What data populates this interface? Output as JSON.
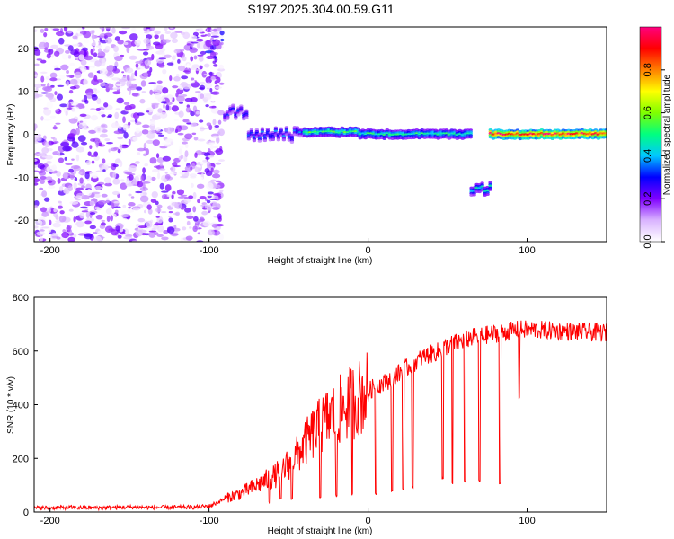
{
  "title": "S197.2025.304.00.59.G11",
  "chart_data": [
    {
      "type": "heatmap",
      "xlabel": "Height of straight line (km)",
      "ylabel": "Frequency (Hz)",
      "xlim": [
        -210,
        150
      ],
      "ylim": [
        -25,
        25
      ],
      "xticks": [
        -200,
        -100,
        0,
        100
      ],
      "xtick_labels": [
        "-200",
        "-100",
        "0",
        "100"
      ],
      "yticks": [
        -20,
        -10,
        0,
        10,
        20
      ],
      "ytick_labels": [
        "-20",
        "-10",
        "0",
        "10",
        "20"
      ],
      "colorbar": {
        "label": "Normalized spectral amplitude",
        "range": [
          0,
          1
        ],
        "ticks": [
          0.0,
          0.2,
          0.4,
          0.6,
          0.8
        ],
        "tick_labels": [
          "0.0",
          "0.2",
          "0.4",
          "0.6",
          "0.8"
        ],
        "colors": [
          "#ffffff",
          "#d9b3ff",
          "#8000ff",
          "#0000ff",
          "#00c8ff",
          "#00ff80",
          "#80ff00",
          "#ffff00",
          "#ff8000",
          "#ff0000",
          "#ff0080"
        ]
      },
      "features": [
        {
          "x_range": [
            -210,
            -92
          ],
          "freq_range": [
            -25,
            25
          ],
          "pattern": "noise",
          "amp": 0.15
        },
        {
          "x_range": [
            -100,
            -90
          ],
          "freq_range": [
            16,
            25
          ],
          "pattern": "patch",
          "amp": 0.2
        },
        {
          "x_range": [
            -90,
            -75
          ],
          "freq": 5,
          "amp": 0.3
        },
        {
          "x_range": [
            -75,
            -40
          ],
          "freq": 0,
          "amp": 0.35
        },
        {
          "x_range": [
            -40,
            -5
          ],
          "freq": 0.5,
          "amp": 0.55
        },
        {
          "x_range": [
            -5,
            65
          ],
          "freq": 0,
          "amp": 0.5
        },
        {
          "x_range": [
            65,
            77
          ],
          "freq": -13,
          "amp": 0.45
        },
        {
          "x_range": [
            77,
            150
          ],
          "freq": 0,
          "amp": 0.95
        }
      ],
      "grid": false
    },
    {
      "type": "line",
      "xlabel": "Height of straight line (km)",
      "ylabel": "SNR (10 * v/v)",
      "xlim": [
        -210,
        150
      ],
      "ylim": [
        0,
        800
      ],
      "xticks": [
        -200,
        -100,
        0,
        100
      ],
      "xtick_labels": [
        "-200",
        "-100",
        "0",
        "100"
      ],
      "yticks": [
        0,
        200,
        400,
        600,
        800
      ],
      "ytick_labels": [
        "0",
        "200",
        "400",
        "600",
        "800"
      ],
      "color": "#ff0000",
      "series": [
        {
          "x": [
            -210,
            -190,
            -170,
            -150,
            -130,
            -110,
            -100,
            -95,
            -90,
            -85,
            -80,
            -75,
            -70,
            -65,
            -60,
            -55,
            -50,
            -45,
            -40,
            -35,
            -30,
            -25,
            -20,
            -15,
            -10,
            -5,
            0,
            5,
            10,
            15,
            20,
            25,
            30,
            35,
            40,
            45,
            50,
            55,
            60,
            65,
            70,
            75,
            80,
            85,
            90,
            95,
            100,
            110,
            120,
            130,
            140,
            150
          ],
          "values": [
            15,
            17,
            16,
            18,
            17,
            18,
            22,
            35,
            50,
            60,
            70,
            85,
            100,
            115,
            130,
            150,
            180,
            210,
            250,
            290,
            320,
            350,
            370,
            390,
            410,
            430,
            450,
            470,
            480,
            500,
            520,
            540,
            560,
            580,
            590,
            600,
            620,
            630,
            640,
            650,
            655,
            660,
            665,
            670,
            675,
            680,
            680,
            678,
            675,
            672,
            670,
            668
          ]
        }
      ],
      "dropouts": [
        {
          "x": -62,
          "value": 30
        },
        {
          "x": -55,
          "value": 40
        },
        {
          "x": -48,
          "value": 45
        },
        {
          "x": -30,
          "value": 50
        },
        {
          "x": -20,
          "value": 55
        },
        {
          "x": -10,
          "value": 60
        },
        {
          "x": 5,
          "value": 65
        },
        {
          "x": 15,
          "value": 70
        },
        {
          "x": 22,
          "value": 80
        },
        {
          "x": 28,
          "value": 85
        },
        {
          "x": 47,
          "value": 120
        },
        {
          "x": 53,
          "value": 100
        },
        {
          "x": 61,
          "value": 110
        },
        {
          "x": 70,
          "value": 110
        },
        {
          "x": 83,
          "value": 100
        },
        {
          "x": 95,
          "value": 420
        }
      ],
      "grid": false
    }
  ]
}
